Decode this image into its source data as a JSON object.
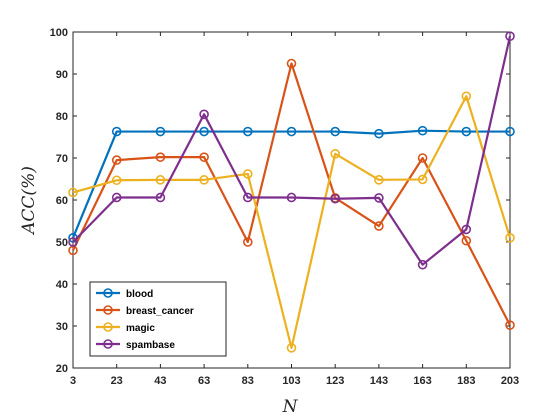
{
  "chart_data": {
    "type": "line",
    "xlabel": "N",
    "ylabel": "ACC(%)",
    "x": [
      3,
      23,
      43,
      63,
      83,
      103,
      123,
      143,
      163,
      183,
      203
    ],
    "x_tick_labels": [
      "3",
      "23",
      "43",
      "63",
      "83",
      "103",
      "123",
      "143",
      "163",
      "183",
      "203"
    ],
    "y_tick_labels": [
      "20",
      "30",
      "40",
      "50",
      "60",
      "70",
      "80",
      "90",
      "100"
    ],
    "xlim": [
      3,
      203
    ],
    "ylim": [
      20,
      100
    ],
    "grid": false,
    "legend_position": "bottom-left",
    "series": [
      {
        "name": "blood",
        "color": "#0072BD",
        "values": [
          51,
          76.3,
          76.3,
          76.3,
          76.3,
          76.3,
          76.3,
          75.8,
          76.5,
          76.3,
          76.3
        ]
      },
      {
        "name": "breast_cancer",
        "color": "#D95319",
        "values": [
          48,
          69.5,
          70.2,
          70.2,
          50,
          92.5,
          60.5,
          53.8,
          70,
          50.3,
          30.2
        ]
      },
      {
        "name": "magic",
        "color": "#EDB120",
        "values": [
          61.8,
          64.7,
          64.8,
          64.8,
          66.2,
          24.8,
          71,
          64.8,
          64.9,
          84.7,
          51
        ]
      },
      {
        "name": "spambase",
        "color": "#7E2F8E",
        "values": [
          50,
          60.6,
          60.6,
          80.4,
          60.6,
          60.6,
          60.3,
          60.5,
          44.6,
          53,
          99
        ]
      }
    ]
  }
}
